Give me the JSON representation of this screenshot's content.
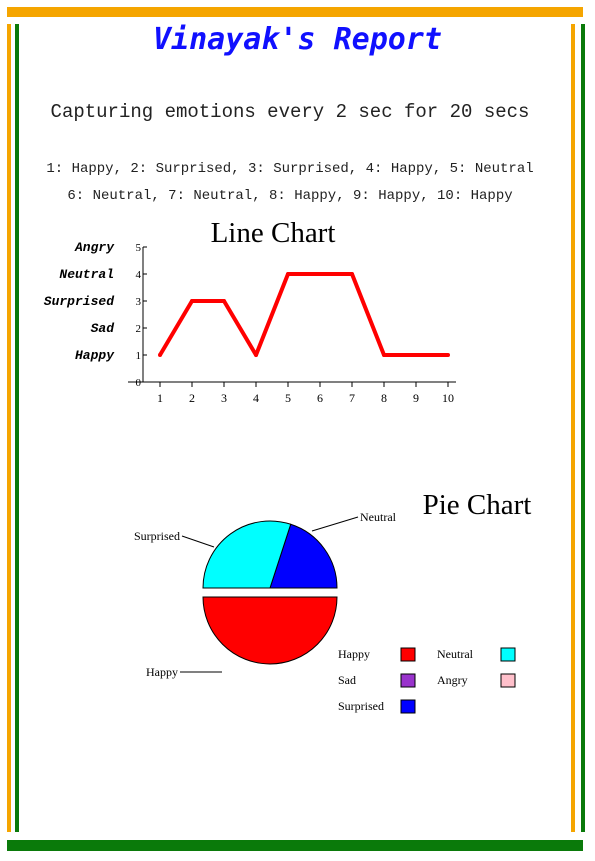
{
  "report": {
    "title": "Vinayak's Report",
    "subtitle": "Capturing emotions every 2 sec for 20 secs",
    "readings_line1": "1: Happy, 2: Surprised, 3: Surprised, 4: Happy, 5: Neutral",
    "readings_line2": "6: Neutral, 7: Neutral, 8: Happy, 9: Happy, 10: Happy"
  },
  "colors": {
    "orange": "#f5a500",
    "green": "#0a7a0a",
    "title": "#1010ff",
    "line": "#ff0000"
  },
  "chart_data": [
    {
      "type": "line",
      "title": "Line Chart",
      "x": [
        1,
        2,
        3,
        4,
        5,
        6,
        7,
        8,
        9,
        10
      ],
      "y": [
        1,
        3,
        3,
        1,
        4,
        4,
        4,
        1,
        1,
        1
      ],
      "ylim": [
        0,
        5
      ],
      "xticks": [
        "1",
        "2",
        "3",
        "4",
        "5",
        "6",
        "7",
        "8",
        "9",
        "10"
      ],
      "yticks": [
        "0",
        "1",
        "2",
        "3",
        "4",
        "5"
      ],
      "emotion_labels": [
        {
          "value": 5,
          "label": "Angry"
        },
        {
          "value": 4,
          "label": "Neutral"
        },
        {
          "value": 3,
          "label": "Surprised"
        },
        {
          "value": 2,
          "label": "Sad"
        },
        {
          "value": 1,
          "label": "Happy"
        }
      ],
      "color": "#ff0000"
    },
    {
      "type": "pie",
      "title": "Pie Chart",
      "slices": [
        {
          "label": "Happy",
          "value": 5,
          "color": "#ff0000",
          "exploded": true
        },
        {
          "label": "Surprised",
          "value": 2,
          "color": "#0000ff",
          "exploded": false
        },
        {
          "label": "Neutral",
          "value": 3,
          "color": "#00ffff",
          "exploded": false
        }
      ],
      "legend": [
        {
          "label": "Happy",
          "color": "#ff0000"
        },
        {
          "label": "Neutral",
          "color": "#00ffff"
        },
        {
          "label": "Sad",
          "color": "#9933cc"
        },
        {
          "label": "Angry",
          "color": "#ffc0cb"
        },
        {
          "label": "Surprised",
          "color": "#0000ff"
        }
      ],
      "legend_position": "bottom-right"
    }
  ]
}
